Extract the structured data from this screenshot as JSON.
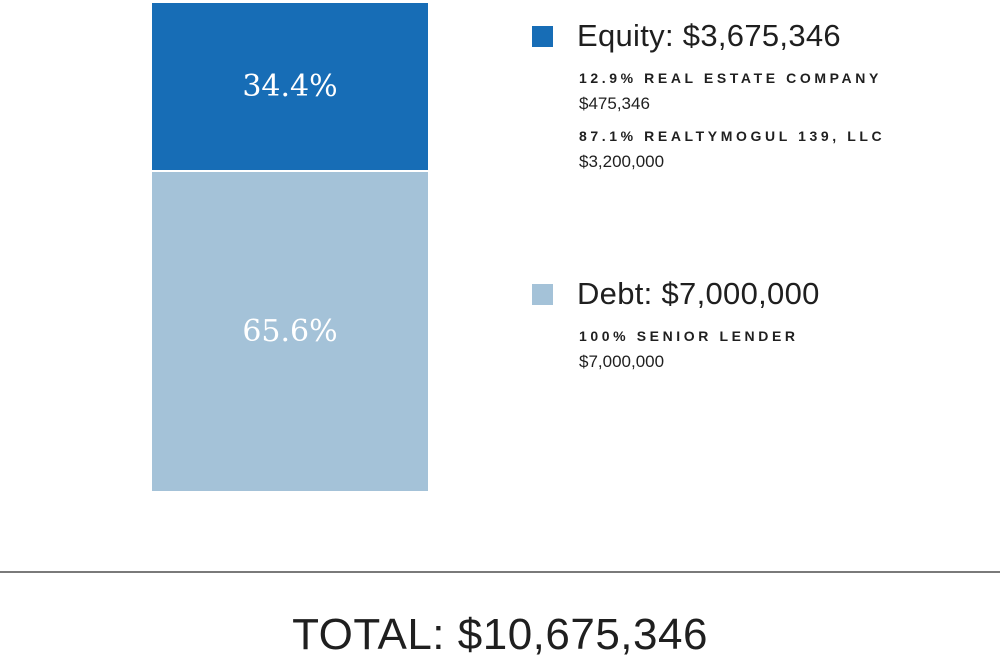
{
  "chart_data": {
    "type": "bar",
    "stacked": true,
    "series": [
      {
        "name": "Equity",
        "value": 3675346,
        "share_label": "34.4%",
        "color": "#176db6"
      },
      {
        "name": "Debt",
        "value": 7000000,
        "share_label": "65.6%",
        "color": "#a4c2d8"
      }
    ]
  },
  "legend": {
    "equity": {
      "title": "Equity: $3,675,346",
      "color": "#176db6",
      "items": [
        {
          "name": "12.9% REAL ESTATE COMPANY",
          "amount": "$475,346"
        },
        {
          "name": "87.1% REALTYMOGUL 139, LLC",
          "amount": "$3,200,000"
        }
      ]
    },
    "debt": {
      "title": "Debt: $7,000,000",
      "color": "#a4c2d8",
      "items": [
        {
          "name": "100% SENIOR LENDER",
          "amount": "$7,000,000"
        }
      ]
    }
  },
  "total": "TOTAL: $10,675,346"
}
